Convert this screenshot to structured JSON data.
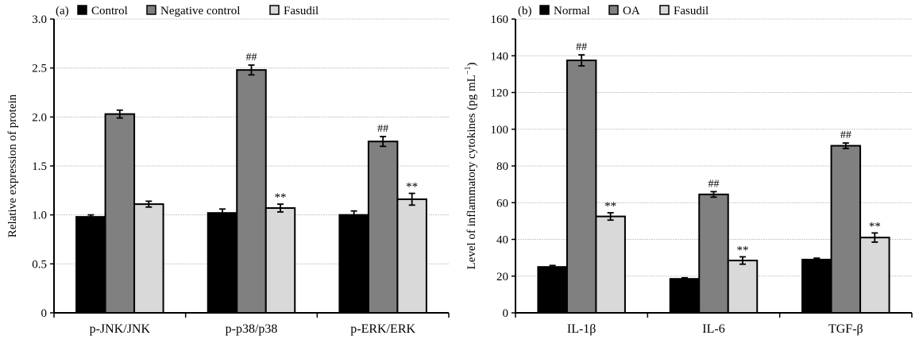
{
  "chart_data": [
    {
      "type": "bar",
      "panel_label": "(a)",
      "ylabel": "Relative expression of protein",
      "xlabel": "",
      "ylim": [
        0,
        3.0
      ],
      "yticks": [
        0,
        0.5,
        1.0,
        1.5,
        2.0,
        2.5,
        3.0
      ],
      "ytick_labels": [
        "0",
        "0.5",
        "1.0",
        "1.5",
        "2.0",
        "2.5",
        "3.0"
      ],
      "grid": true,
      "legend_placement": "top",
      "categories": [
        "p-JNK/JNK",
        "p-p38/p38",
        "p-ERK/ERK"
      ],
      "series": [
        {
          "name": "Control",
          "color": "#000000",
          "values": [
            0.98,
            1.02,
            1.0
          ],
          "errors": [
            0.02,
            0.04,
            0.04
          ],
          "annotations": [
            "",
            "",
            ""
          ]
        },
        {
          "name": "Negative control",
          "color": "#808080",
          "values": [
            2.03,
            2.48,
            1.75
          ],
          "errors": [
            0.04,
            0.05,
            0.05
          ],
          "annotations": [
            "",
            "##",
            "##"
          ]
        },
        {
          "name": "Fasudil",
          "color": "#d9d9d9",
          "values": [
            1.11,
            1.07,
            1.16
          ],
          "errors": [
            0.03,
            0.04,
            0.06
          ],
          "annotations": [
            "",
            "**",
            "**"
          ]
        }
      ]
    },
    {
      "type": "bar",
      "panel_label": "(b)",
      "ylabel": "Level of inflammatory cytokines (pg mL",
      "ylabel_sup": "−1",
      "ylabel_end": ")",
      "xlabel": "",
      "ylim": [
        0,
        160
      ],
      "yticks": [
        0,
        20,
        40,
        60,
        80,
        100,
        120,
        140,
        160
      ],
      "ytick_labels": [
        "0",
        "20",
        "40",
        "60",
        "80",
        "100",
        "120",
        "140",
        "160"
      ],
      "grid": true,
      "legend_placement": "top",
      "categories": [
        "IL-1β",
        "IL-6",
        "TGF-β"
      ],
      "series": [
        {
          "name": "Normal",
          "color": "#000000",
          "values": [
            25,
            18.5,
            29
          ],
          "errors": [
            0.8,
            0.6,
            0.8
          ],
          "annotations": [
            "",
            "",
            ""
          ]
        },
        {
          "name": "OA",
          "color": "#808080",
          "values": [
            137.5,
            64.5,
            91
          ],
          "errors": [
            3,
            1.5,
            1.5
          ],
          "annotations": [
            "##",
            "##",
            "##"
          ]
        },
        {
          "name": "Fasudil",
          "color": "#d9d9d9",
          "values": [
            52.5,
            28.5,
            41
          ],
          "errors": [
            2,
            2,
            2.5
          ],
          "annotations": [
            "**",
            "**",
            "**"
          ]
        }
      ]
    }
  ]
}
